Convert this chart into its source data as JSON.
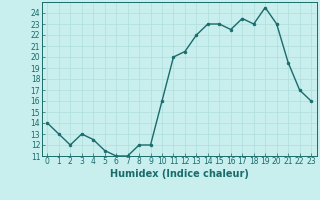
{
  "x": [
    0,
    1,
    2,
    3,
    4,
    5,
    6,
    7,
    8,
    9,
    10,
    11,
    12,
    13,
    14,
    15,
    16,
    17,
    18,
    19,
    20,
    21,
    22,
    23
  ],
  "y": [
    14,
    13,
    12,
    13,
    12.5,
    11.5,
    11,
    11,
    12,
    12,
    16,
    20,
    20.5,
    22,
    23,
    23,
    22.5,
    23.5,
    23,
    24.5,
    23,
    19.5,
    17,
    16
  ],
  "line_color": "#1a6b6b",
  "marker_color": "#1a6b6b",
  "bg_color": "#c8eeee",
  "grid_color": "#b0dede",
  "xlabel": "Humidex (Indice chaleur)",
  "ylim": [
    11,
    25
  ],
  "xlim": [
    -0.5,
    23.5
  ],
  "yticks": [
    11,
    12,
    13,
    14,
    15,
    16,
    17,
    18,
    19,
    20,
    21,
    22,
    23,
    24
  ],
  "xticks": [
    0,
    1,
    2,
    3,
    4,
    5,
    6,
    7,
    8,
    9,
    10,
    11,
    12,
    13,
    14,
    15,
    16,
    17,
    18,
    19,
    20,
    21,
    22,
    23
  ],
  "tick_fontsize": 5.5,
  "xlabel_fontsize": 7,
  "marker_size": 2,
  "line_width": 1.0
}
